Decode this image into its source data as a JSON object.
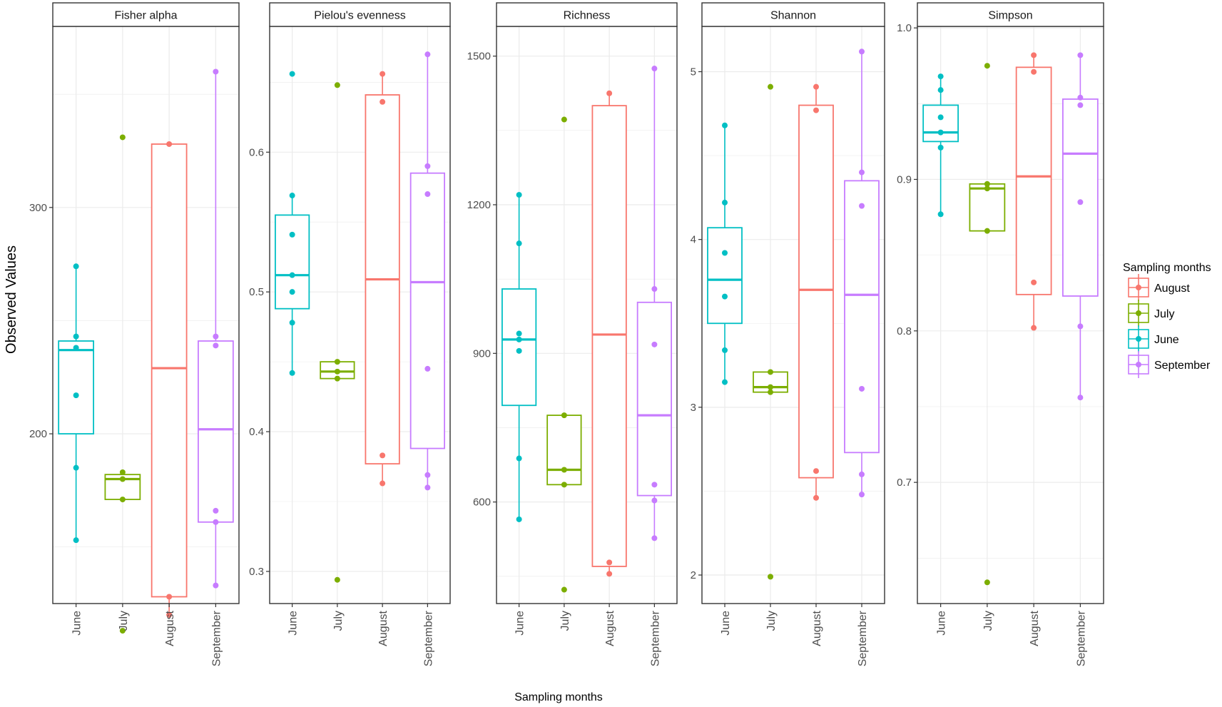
{
  "figure": {
    "y_axis_label": "Observed Values",
    "x_axis_label": "Sampling months",
    "legend_title": "Sampling months"
  },
  "legend": [
    {
      "label": "August",
      "color": "#F8766D"
    },
    {
      "label": "July",
      "color": "#7CAE00"
    },
    {
      "label": "June",
      "color": "#00BFC4"
    },
    {
      "label": "September",
      "color": "#C77CFF"
    }
  ],
  "colors": {
    "June": "#00BFC4",
    "July": "#7CAE00",
    "August": "#F8766D",
    "September": "#C77CFF"
  },
  "chart_data": [
    {
      "type": "box",
      "title": "Fisher alpha",
      "categories": [
        "June",
        "July",
        "August",
        "September"
      ],
      "ylim": [
        125,
        380
      ],
      "yticks": [
        200,
        300
      ],
      "y_tick_labels": [
        "200",
        "300"
      ],
      "boxes": [
        {
          "q1": 200,
          "median": 237,
          "q3": 241,
          "whisker_low": 153,
          "whisker_high": 274
        },
        {
          "q1": 171,
          "median": 180,
          "q3": 182,
          "whisker_low": 171,
          "whisker_high": 182
        },
        {
          "q1": 128,
          "median": 229,
          "q3": 328,
          "whisker_low": 120,
          "whisker_high": 328
        },
        {
          "q1": 161,
          "median": 202,
          "q3": 241,
          "whisker_low": 133,
          "whisker_high": 360
        }
      ],
      "points": [
        [
          274,
          243,
          238,
          217,
          185,
          153
        ],
        [
          331,
          183,
          180,
          171,
          113
        ],
        [
          328,
          128,
          120
        ],
        [
          360,
          243,
          239,
          166,
          161,
          133
        ]
      ]
    },
    {
      "type": "box",
      "title": "Pielou's evenness",
      "categories": [
        "June",
        "July",
        "August",
        "September"
      ],
      "ylim": [
        0.277,
        0.69
      ],
      "yticks": [
        0.3,
        0.4,
        0.5,
        0.6
      ],
      "y_tick_labels": [
        "0.3",
        "0.4",
        "0.5",
        "0.6"
      ],
      "boxes": [
        {
          "q1": 0.488,
          "median": 0.512,
          "q3": 0.555,
          "whisker_low": 0.442,
          "whisker_high": 0.569
        },
        {
          "q1": 0.438,
          "median": 0.443,
          "q3": 0.45,
          "whisker_low": 0.438,
          "whisker_high": 0.45
        },
        {
          "q1": 0.377,
          "median": 0.509,
          "q3": 0.641,
          "whisker_low": 0.363,
          "whisker_high": 0.656
        },
        {
          "q1": 0.388,
          "median": 0.507,
          "q3": 0.585,
          "whisker_low": 0.36,
          "whisker_high": 0.67
        }
      ],
      "points": [
        [
          0.656,
          0.569,
          0.541,
          0.512,
          0.5,
          0.478,
          0.442
        ],
        [
          0.648,
          0.45,
          0.443,
          0.438,
          0.294
        ],
        [
          0.656,
          0.636,
          0.383,
          0.363
        ],
        [
          0.67,
          0.59,
          0.57,
          0.445,
          0.369,
          0.36
        ]
      ]
    },
    {
      "type": "box",
      "title": "Richness",
      "categories": [
        "June",
        "July",
        "August",
        "September"
      ],
      "ylim": [
        395,
        1560
      ],
      "yticks": [
        600,
        900,
        1200,
        1500
      ],
      "y_tick_labels": [
        "600",
        "900",
        "1200",
        "1500"
      ],
      "boxes": [
        {
          "q1": 795,
          "median": 928,
          "q3": 1030,
          "whisker_low": 565,
          "whisker_high": 1220
        },
        {
          "q1": 635,
          "median": 665,
          "q3": 775,
          "whisker_low": 635,
          "whisker_high": 775
        },
        {
          "q1": 470,
          "median": 938,
          "q3": 1400,
          "whisker_low": 455,
          "whisker_high": 1425
        },
        {
          "q1": 613,
          "median": 775,
          "q3": 1003,
          "whisker_low": 527,
          "whisker_high": 1475
        }
      ],
      "points": [
        [
          1220,
          1122,
          940,
          928,
          905,
          688,
          565
        ],
        [
          1372,
          775,
          665,
          635,
          423
        ],
        [
          1425,
          478,
          455
        ],
        [
          1475,
          1030,
          918,
          635,
          603,
          527
        ]
      ]
    },
    {
      "type": "box",
      "title": "Shannon",
      "categories": [
        "June",
        "July",
        "August",
        "September"
      ],
      "ylim": [
        1.83,
        5.27
      ],
      "yticks": [
        2,
        3,
        4,
        5
      ],
      "y_tick_labels": [
        "2",
        "3",
        "4",
        "5"
      ],
      "boxes": [
        {
          "q1": 3.5,
          "median": 3.76,
          "q3": 4.07,
          "whisker_low": 3.15,
          "whisker_high": 4.68
        },
        {
          "q1": 3.09,
          "median": 3.12,
          "q3": 3.21,
          "whisker_low": 3.09,
          "whisker_high": 3.21
        },
        {
          "q1": 2.58,
          "median": 3.7,
          "q3": 4.8,
          "whisker_low": 2.46,
          "whisker_high": 4.91
        },
        {
          "q1": 2.73,
          "median": 3.67,
          "q3": 4.35,
          "whisker_low": 2.48,
          "whisker_high": 5.12
        }
      ],
      "points": [
        [
          4.68,
          4.22,
          3.92,
          3.66,
          3.34,
          3.15
        ],
        [
          4.91,
          3.21,
          3.12,
          3.09,
          1.99
        ],
        [
          4.91,
          4.77,
          2.62,
          2.46
        ],
        [
          5.12,
          4.4,
          4.2,
          3.11,
          2.6,
          2.48
        ]
      ]
    },
    {
      "type": "box",
      "title": "Simpson",
      "categories": [
        "June",
        "July",
        "August",
        "September"
      ],
      "ylim": [
        0.62,
        1.001
      ],
      "yticks": [
        0.7,
        0.8,
        0.9,
        1.0
      ],
      "y_tick_labels": [
        "0.7",
        "0.8",
        "0.9",
        "1.0"
      ],
      "boxes": [
        {
          "q1": 0.925,
          "median": 0.931,
          "q3": 0.949,
          "whisker_low": 0.877,
          "whisker_high": 0.968
        },
        {
          "q1": 0.866,
          "median": 0.894,
          "q3": 0.897,
          "whisker_low": 0.866,
          "whisker_high": 0.897
        },
        {
          "q1": 0.824,
          "median": 0.902,
          "q3": 0.974,
          "whisker_low": 0.802,
          "whisker_high": 0.982
        },
        {
          "q1": 0.823,
          "median": 0.917,
          "q3": 0.953,
          "whisker_low": 0.756,
          "whisker_high": 0.982
        }
      ],
      "points": [
        [
          0.968,
          0.959,
          0.941,
          0.931,
          0.921,
          0.877
        ],
        [
          0.975,
          0.897,
          0.894,
          0.866,
          0.634
        ],
        [
          0.982,
          0.971,
          0.832,
          0.802
        ],
        [
          0.982,
          0.954,
          0.949,
          0.885,
          0.803,
          0.756
        ]
      ]
    }
  ]
}
